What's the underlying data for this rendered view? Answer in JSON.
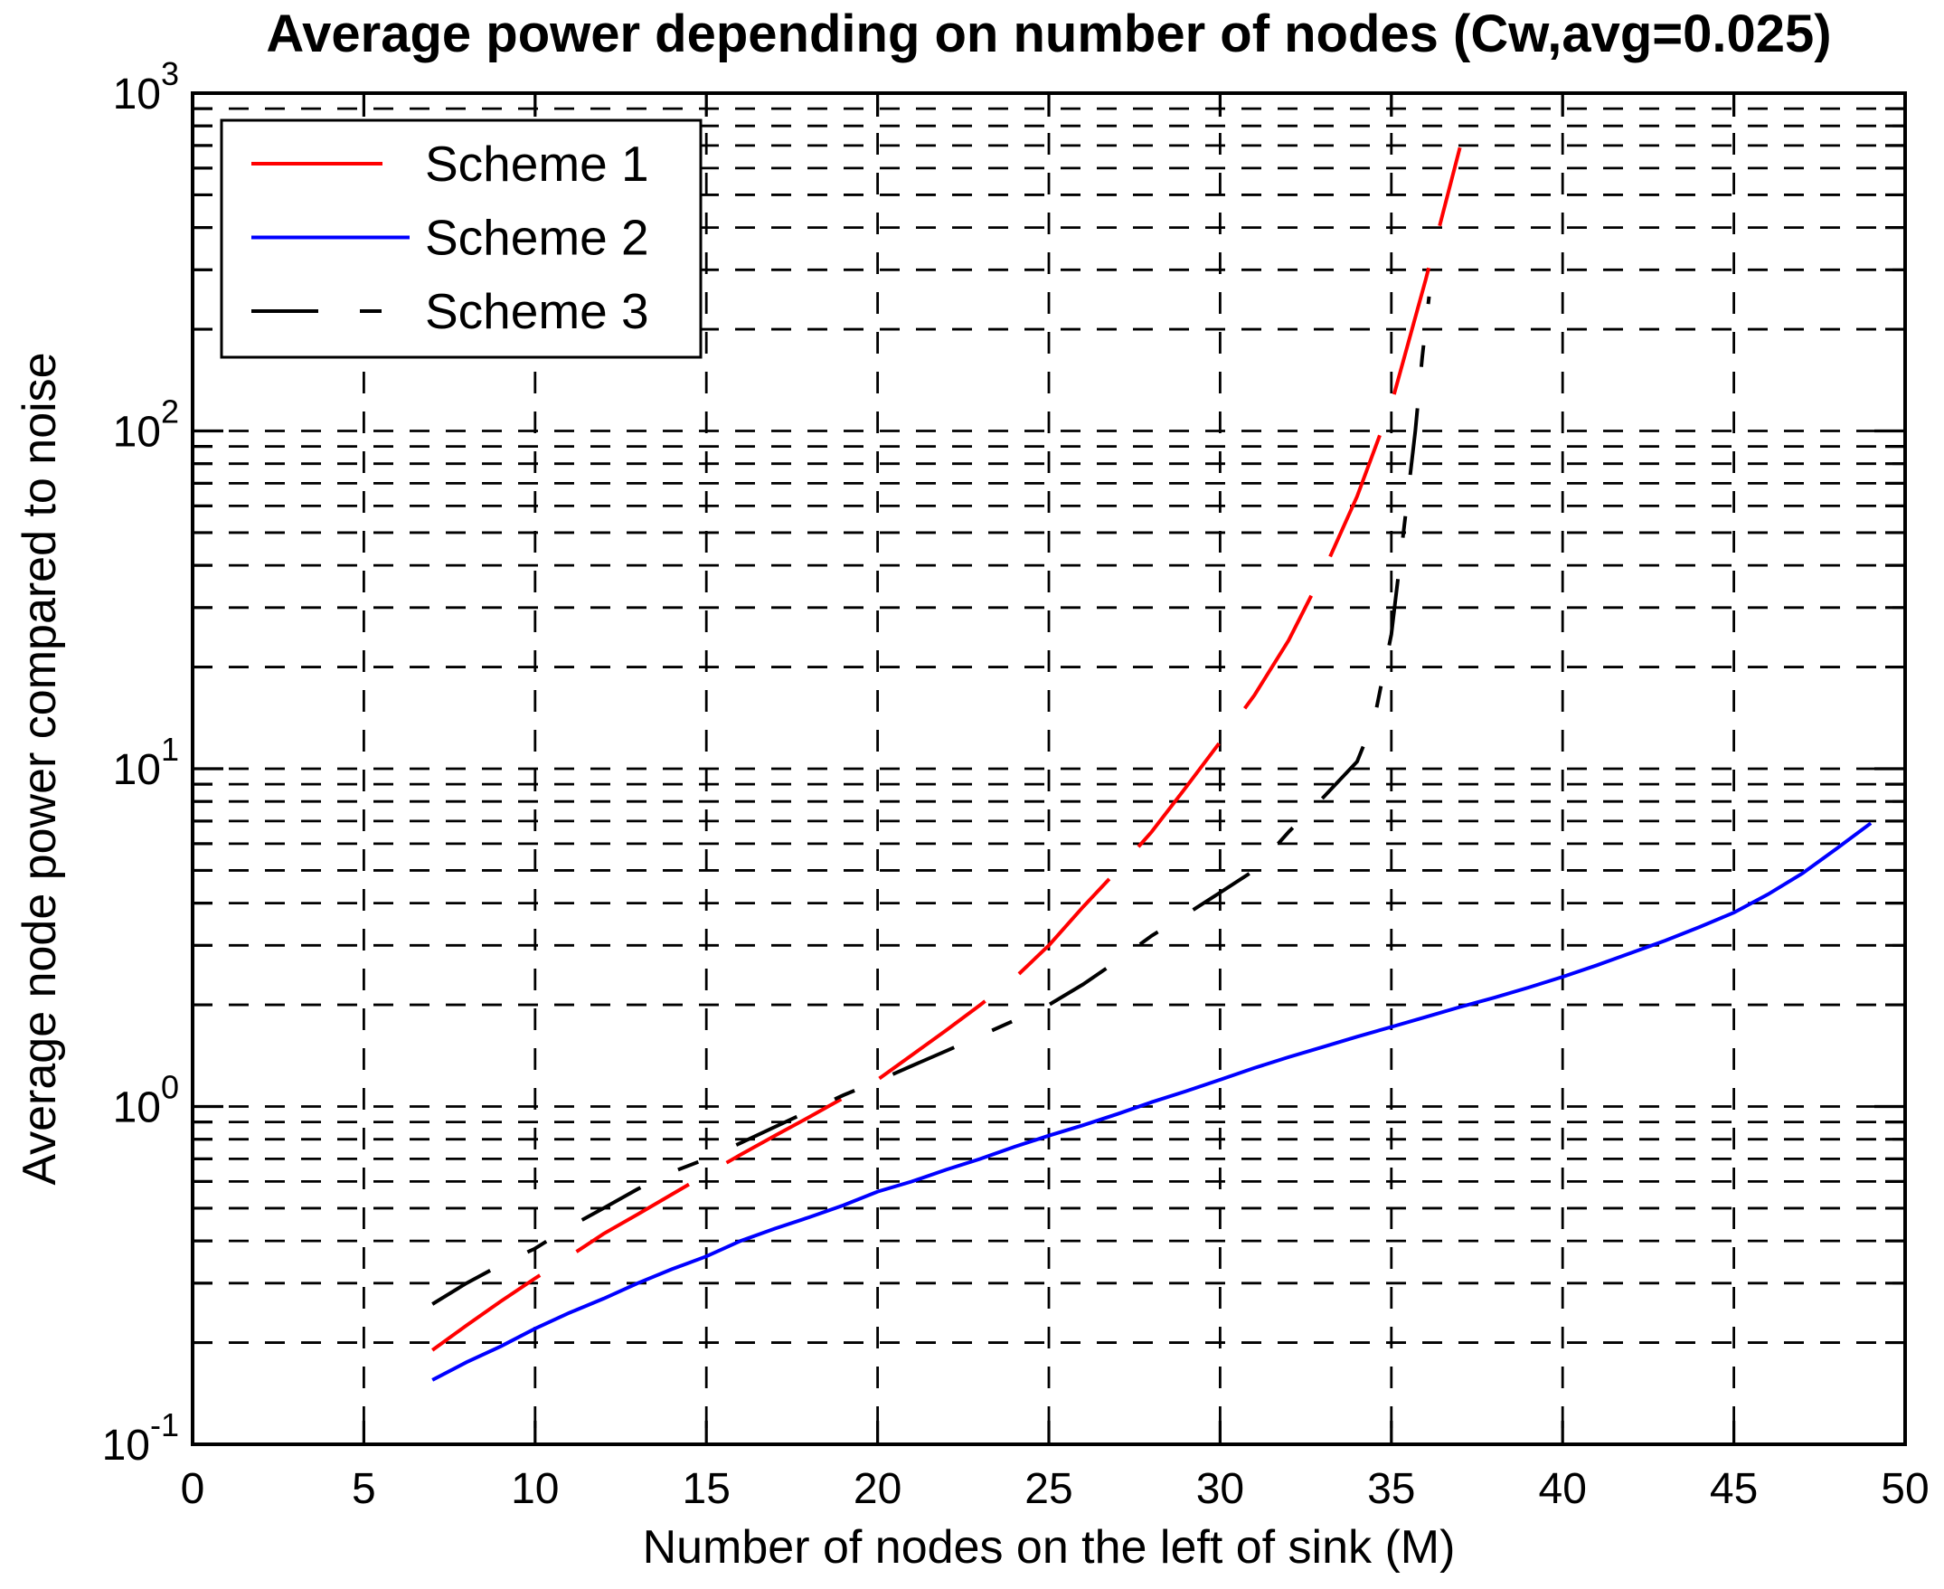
{
  "chart_data": {
    "type": "line",
    "title": "Average power depending on number of nodes (Cw,avg=0.025)",
    "xlabel": "Number of nodes on the left of sink (M)",
    "ylabel": "Average node power compared to noise",
    "xlim": [
      0,
      50
    ],
    "x_ticks": [
      0,
      5,
      10,
      15,
      20,
      25,
      30,
      35,
      40,
      45,
      50
    ],
    "y_scale": "log10",
    "ylim": [
      0.1,
      1000
    ],
    "y_tick_exponents": [
      -1,
      0,
      1,
      2,
      3
    ],
    "grid": true,
    "axis_color": "#000000",
    "grid_color": "#000000",
    "background": "#ffffff",
    "legend": {
      "position": "top-left"
    },
    "series": [
      {
        "name": "Scheme 1",
        "color": "#ff0000",
        "line_style": "long-dash",
        "x": [
          7,
          8,
          9,
          10,
          11,
          12,
          13,
          14,
          15,
          16,
          17,
          18,
          19,
          20,
          21,
          22,
          23,
          24,
          25,
          26,
          27,
          28,
          29,
          30,
          31,
          32,
          33,
          34,
          35,
          36,
          37
        ],
        "y": [
          0.19,
          0.225,
          0.265,
          0.31,
          0.36,
          0.42,
          0.48,
          0.55,
          0.63,
          0.72,
          0.82,
          0.93,
          1.06,
          1.2,
          1.42,
          1.68,
          2.0,
          2.4,
          3.0,
          3.9,
          5.0,
          6.5,
          8.8,
          12,
          16.5,
          24,
          38,
          64,
          120,
          280,
          690
        ]
      },
      {
        "name": "Scheme 2",
        "color": "#0000ff",
        "line_style": "solid",
        "x": [
          7,
          8,
          9,
          10,
          11,
          12,
          13,
          14,
          15,
          16,
          17,
          18,
          19,
          20,
          21,
          22,
          23,
          24,
          25,
          26,
          27,
          28,
          29,
          30,
          31,
          32,
          33,
          34,
          35,
          36,
          37,
          38,
          39,
          40,
          41,
          42,
          43,
          44,
          45,
          46,
          47,
          48,
          49
        ],
        "y": [
          0.155,
          0.175,
          0.195,
          0.22,
          0.245,
          0.27,
          0.3,
          0.33,
          0.36,
          0.4,
          0.435,
          0.47,
          0.51,
          0.56,
          0.6,
          0.65,
          0.7,
          0.76,
          0.82,
          0.88,
          0.95,
          1.03,
          1.11,
          1.2,
          1.3,
          1.4,
          1.5,
          1.61,
          1.72,
          1.84,
          1.97,
          2.1,
          2.25,
          2.42,
          2.62,
          2.85,
          3.1,
          3.4,
          3.75,
          4.25,
          4.9,
          5.8,
          6.9
        ]
      },
      {
        "name": "Scheme 3",
        "color": "#000000",
        "line_style": "dashed",
        "x": [
          7,
          8,
          9,
          10,
          11,
          12,
          13,
          14,
          15,
          16,
          17,
          18,
          19,
          20,
          21,
          22,
          23,
          24,
          25,
          26,
          27,
          28,
          29,
          30,
          31,
          32,
          33,
          34,
          34.5,
          35,
          35.4,
          35.7,
          35.9,
          36.1
        ],
        "y": [
          0.26,
          0.3,
          0.34,
          0.38,
          0.44,
          0.5,
          0.57,
          0.64,
          0.7,
          0.78,
          0.87,
          0.97,
          1.08,
          1.19,
          1.32,
          1.46,
          1.62,
          1.8,
          2.0,
          2.3,
          2.7,
          3.2,
          3.7,
          4.3,
          5.0,
          6.5,
          8.2,
          10.5,
          14,
          25,
          55,
          100,
          165,
          250
        ]
      }
    ]
  }
}
